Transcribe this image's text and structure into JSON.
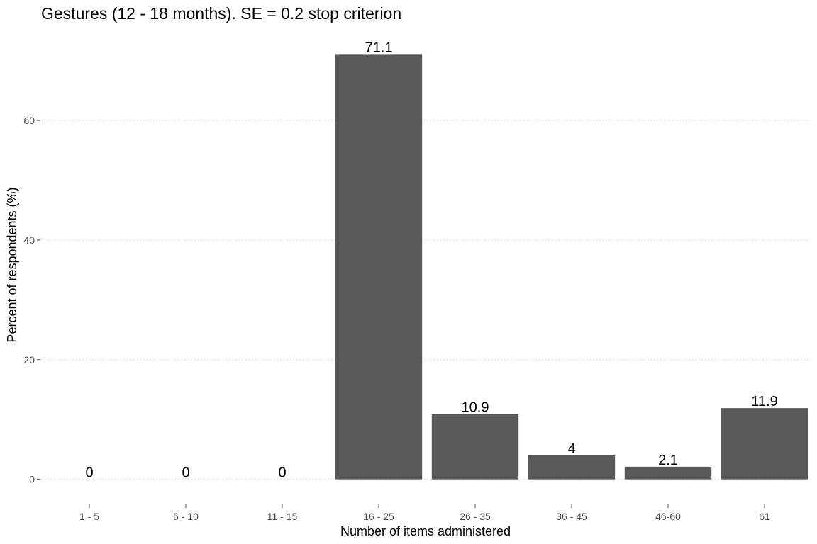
{
  "chart_data": {
    "type": "bar",
    "title": "Gestures (12 - 18 months). SE = 0.2 stop criterion",
    "xlabel": "Number of items administered",
    "ylabel": "Percent of respondents (%)",
    "categories": [
      "1 - 5",
      "6 - 10",
      "11 - 15",
      "16 - 25",
      "26 - 35",
      "36 - 45",
      "46-60",
      "61"
    ],
    "values": [
      0,
      0,
      0,
      71.1,
      10.9,
      4,
      2.1,
      11.9
    ],
    "value_labels": [
      "0",
      "0",
      "0",
      "71.1",
      "10.9",
      "4",
      "2.1",
      "11.9"
    ],
    "yticks": [
      0,
      20,
      40,
      60
    ],
    "ylim": [
      -3.6,
      74.7
    ],
    "grid": true,
    "legend": "none",
    "colors": {
      "bar": "#595959"
    }
  }
}
